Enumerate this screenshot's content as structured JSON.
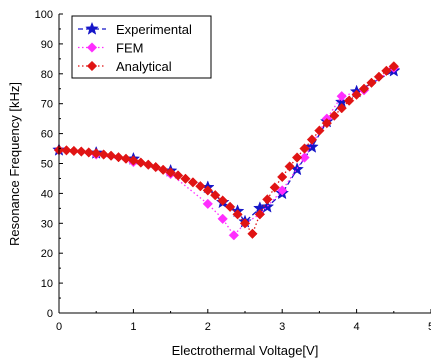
{
  "chart_data": {
    "type": "line",
    "xlabel": "Electrothermal Voltage[V]",
    "ylabel": "Resonance Frequency [kHz]",
    "xlim": [
      0,
      5
    ],
    "ylim": [
      0,
      100
    ],
    "x_ticks": [
      "0",
      "1",
      "2",
      "3",
      "4",
      "5"
    ],
    "y_ticks": [
      "0",
      "10",
      "20",
      "30",
      "40",
      "50",
      "60",
      "70",
      "80",
      "90",
      "100"
    ],
    "grid": false,
    "legend_position": "top-left",
    "series": [
      {
        "name": "Experimental",
        "color": "#1515c8",
        "marker": "star",
        "line_style": "dashed",
        "points": [
          [
            0.0,
            54.5
          ],
          [
            0.5,
            53.5
          ],
          [
            1.0,
            51.5
          ],
          [
            1.5,
            47.5
          ],
          [
            2.0,
            42.0
          ],
          [
            2.2,
            37.0
          ],
          [
            2.4,
            34.0
          ],
          [
            2.5,
            30.5
          ],
          [
            2.7,
            35.0
          ],
          [
            2.8,
            35.5
          ],
          [
            3.0,
            40.0
          ],
          [
            3.2,
            48.0
          ],
          [
            3.4,
            55.5
          ],
          [
            3.6,
            64.0
          ],
          [
            3.8,
            70.5
          ],
          [
            4.0,
            74.0
          ],
          [
            4.5,
            81.0
          ]
        ]
      },
      {
        "name": "FEM",
        "color": "#ff2dff",
        "marker": "diamond",
        "line_style": "dotted",
        "points": [
          [
            0.0,
            54.5
          ],
          [
            0.5,
            53.0
          ],
          [
            1.0,
            50.5
          ],
          [
            1.5,
            46.5
          ],
          [
            2.0,
            36.5
          ],
          [
            2.2,
            31.5
          ],
          [
            2.35,
            26.0
          ],
          [
            2.5,
            30.0
          ],
          [
            2.7,
            33.0
          ],
          [
            3.0,
            41.0
          ],
          [
            3.3,
            52.0
          ],
          [
            3.6,
            65.0
          ],
          [
            3.8,
            72.5
          ],
          [
            4.1,
            74.5
          ],
          [
            4.5,
            82.0
          ]
        ]
      },
      {
        "name": "Analytical",
        "color": "#e01414",
        "marker": "diamond",
        "line_style": "dotted",
        "points": [
          [
            0.0,
            54.5
          ],
          [
            0.1,
            54.4
          ],
          [
            0.2,
            54.2
          ],
          [
            0.3,
            54.0
          ],
          [
            0.4,
            53.7
          ],
          [
            0.5,
            53.4
          ],
          [
            0.6,
            53.0
          ],
          [
            0.7,
            52.6
          ],
          [
            0.8,
            52.1
          ],
          [
            0.9,
            51.6
          ],
          [
            1.0,
            51.0
          ],
          [
            1.1,
            50.3
          ],
          [
            1.2,
            49.6
          ],
          [
            1.3,
            48.8
          ],
          [
            1.4,
            47.9
          ],
          [
            1.5,
            47.0
          ],
          [
            1.6,
            46.0
          ],
          [
            1.7,
            44.9
          ],
          [
            1.8,
            43.7
          ],
          [
            1.9,
            42.4
          ],
          [
            2.0,
            41.0
          ],
          [
            2.1,
            39.4
          ],
          [
            2.2,
            37.6
          ],
          [
            2.3,
            35.5
          ],
          [
            2.4,
            33.0
          ],
          [
            2.5,
            30.0
          ],
          [
            2.6,
            26.5
          ],
          [
            2.7,
            33.0
          ],
          [
            2.8,
            38.0
          ],
          [
            2.9,
            42.0
          ],
          [
            3.0,
            45.5
          ],
          [
            3.1,
            49.0
          ],
          [
            3.2,
            52.0
          ],
          [
            3.3,
            55.0
          ],
          [
            3.4,
            58.0
          ],
          [
            3.5,
            61.0
          ],
          [
            3.6,
            63.5
          ],
          [
            3.7,
            66.0
          ],
          [
            3.8,
            68.5
          ],
          [
            3.9,
            71.0
          ],
          [
            4.0,
            73.0
          ],
          [
            4.1,
            75.0
          ],
          [
            4.2,
            77.0
          ],
          [
            4.3,
            79.0
          ],
          [
            4.4,
            81.0
          ],
          [
            4.5,
            82.5
          ]
        ]
      }
    ]
  }
}
